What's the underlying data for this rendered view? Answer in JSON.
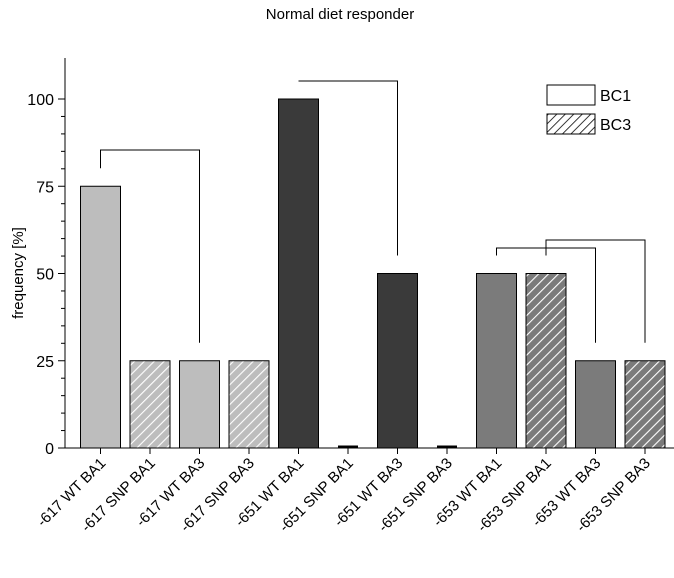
{
  "chart_data": {
    "type": "bar",
    "title": "Normal diet responder",
    "ylabel": "frequency [%]",
    "xlabel": "",
    "ylim": [
      0,
      110
    ],
    "yticks": [
      0,
      25,
      50,
      75,
      100
    ],
    "grid": false,
    "legend_position": "top-right",
    "legend": [
      {
        "label": "BC1",
        "pattern": "solid"
      },
      {
        "label": "BC3",
        "pattern": "hatched"
      }
    ],
    "categories": [
      "-617 WT BA1",
      "-617 SNP BA1",
      "-617 WT BA3",
      "-617 SNP BA3",
      "-651 WT BA1",
      "-651 SNP BA1",
      "-651 WT BA3",
      "-651 SNP BA3",
      "-653 WT BA1",
      "-653 SNP BA1",
      "-653 WT BA3",
      "-653 SNP BA3"
    ],
    "values": [
      75,
      25,
      25,
      25,
      100,
      0,
      50,
      0,
      50,
      50,
      25,
      25
    ],
    "bar_colors": [
      "#bdbdbd",
      "#bdbdbd",
      "#bdbdbd",
      "#bdbdbd",
      "#3a3a3a",
      "#3a3a3a",
      "#3a3a3a",
      "#3a3a3a",
      "#7b7b7b",
      "#7b7b7b",
      "#7b7b7b",
      "#7b7b7b"
    ],
    "bar_patterns": [
      "solid",
      "hatched",
      "solid",
      "hatched",
      "solid",
      "hatched",
      "solid",
      "hatched",
      "solid",
      "hatched",
      "solid",
      "hatched"
    ],
    "comparison_brackets": [
      [
        0,
        2
      ],
      [
        4,
        6
      ],
      [
        8,
        10
      ],
      [
        9,
        11
      ]
    ]
  }
}
